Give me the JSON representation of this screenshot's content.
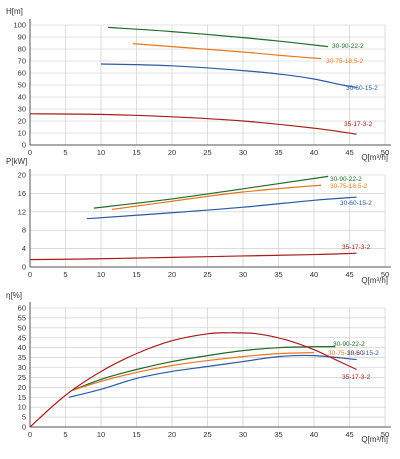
{
  "colors": {
    "grid": "#c8c8c8",
    "axis": "#555555",
    "text": "#333333",
    "green": "#1e6b2a",
    "orange": "#e8781e",
    "blue": "#2a5aa6",
    "red": "#a81c1c"
  },
  "chart_data": [
    {
      "type": "line",
      "ylabel": "H[m]",
      "xlabel": "Q[m³/h]",
      "xlim": [
        0,
        50
      ],
      "ylim": [
        0,
        100
      ],
      "x_ticks": [
        0,
        5,
        10,
        15,
        20,
        25,
        30,
        35,
        40,
        45,
        50
      ],
      "y_ticks": [
        0,
        10,
        20,
        30,
        40,
        50,
        60,
        70,
        80,
        90,
        100
      ],
      "grid": true,
      "series": [
        {
          "name": "30-90-22-2",
          "color": "green",
          "x": [
            11,
            20,
            30,
            36,
            42
          ],
          "y": [
            98,
            94.5,
            89.5,
            86,
            82
          ]
        },
        {
          "name": "30-75-18,5-2",
          "color": "orange",
          "x": [
            14.5,
            20,
            30,
            35,
            41
          ],
          "y": [
            84.5,
            82,
            77.5,
            74.8,
            72
          ]
        },
        {
          "name": "30-60-15-2",
          "color": "blue",
          "x": [
            10,
            20,
            30,
            36,
            40,
            44,
            46
          ],
          "y": [
            67.5,
            66,
            62,
            58.5,
            55,
            50,
            48
          ]
        },
        {
          "name": "35-17-3-2",
          "color": "red",
          "x": [
            0,
            10,
            20,
            30,
            40,
            46
          ],
          "y": [
            26,
            25.5,
            23.5,
            20,
            14,
            9
          ]
        }
      ]
    },
    {
      "type": "line",
      "ylabel": "P[kW]",
      "xlabel": "Q[m³/h]",
      "xlim": [
        0,
        50
      ],
      "ylim": [
        0,
        20
      ],
      "x_ticks": [
        0,
        5,
        10,
        15,
        20,
        25,
        30,
        35,
        40,
        45,
        50
      ],
      "y_ticks": [
        0,
        4,
        8,
        12,
        16,
        20
      ],
      "grid": true,
      "series": [
        {
          "name": "30-90-22-2",
          "color": "green",
          "x": [
            9,
            20,
            30,
            42
          ],
          "y": [
            12.8,
            14.8,
            17,
            19.7
          ]
        },
        {
          "name": "30-75-18,5-2",
          "color": "orange",
          "x": [
            11.5,
            20,
            30,
            41
          ],
          "y": [
            12.5,
            14.3,
            16.3,
            17.8
          ]
        },
        {
          "name": "30-60-15-2",
          "color": "blue",
          "x": [
            8,
            20,
            30,
            40,
            46
          ],
          "y": [
            10.5,
            11.8,
            13,
            14.5,
            15.2
          ]
        },
        {
          "name": "35-17-3-2",
          "color": "red",
          "x": [
            0,
            10,
            20,
            30,
            40,
            46
          ],
          "y": [
            1.6,
            1.8,
            2.1,
            2.4,
            2.7,
            3
          ]
        }
      ]
    },
    {
      "type": "line",
      "ylabel": "η[%]",
      "xlabel": "Q[m³/h]",
      "xlim": [
        0,
        50
      ],
      "ylim": [
        0,
        60
      ],
      "x_ticks": [
        0,
        5,
        10,
        15,
        20,
        25,
        30,
        35,
        40,
        45,
        50
      ],
      "y_ticks": [
        0,
        5,
        10,
        15,
        20,
        25,
        30,
        35,
        40,
        45,
        50,
        55,
        60
      ],
      "grid": true,
      "series": [
        {
          "name": "30-90-22-2",
          "color": "green",
          "x": [
            6,
            10,
            15,
            20,
            25,
            30,
            35,
            40,
            43
          ],
          "y": [
            18.5,
            24,
            29,
            33,
            36,
            38.5,
            40,
            40.5,
            40.5
          ]
        },
        {
          "name": "30-75-18,5-2",
          "color": "orange",
          "x": [
            6,
            10,
            15,
            20,
            25,
            30,
            35,
            40
          ],
          "y": [
            18.5,
            23,
            27.5,
            31,
            33.5,
            35.5,
            37,
            37.5
          ]
        },
        {
          "name": "30-60-15-2",
          "color": "blue",
          "x": [
            5.5,
            10,
            15,
            20,
            25,
            30,
            35,
            40,
            46
          ],
          "y": [
            15,
            19,
            24.5,
            28,
            30.5,
            33,
            35.5,
            36,
            34
          ]
        },
        {
          "name": "35-17-3-2",
          "color": "red",
          "x": [
            0,
            5,
            10,
            15,
            20,
            25,
            28,
            32,
            36,
            40,
            43,
            46
          ],
          "y": [
            0,
            16,
            28,
            37,
            43.5,
            47,
            47.5,
            47,
            44,
            39,
            34,
            29
          ]
        }
      ]
    }
  ]
}
